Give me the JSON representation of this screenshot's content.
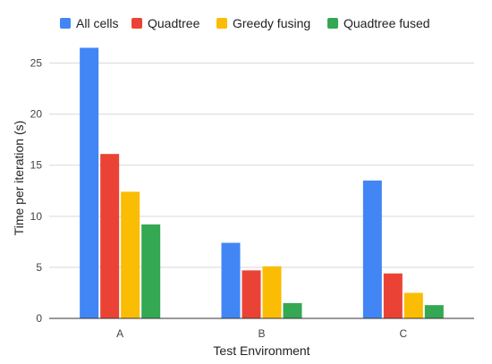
{
  "chart_data": {
    "type": "bar",
    "categories": [
      "A",
      "B",
      "C"
    ],
    "series": [
      {
        "name": "All cells",
        "color": "#4285F4",
        "values": [
          26.5,
          7.4,
          13.5
        ]
      },
      {
        "name": "Quadtree",
        "color": "#EA4335",
        "values": [
          16.1,
          4.7,
          4.4
        ]
      },
      {
        "name": "Greedy fusing",
        "color": "#FBBC04",
        "values": [
          12.4,
          5.1,
          2.5
        ]
      },
      {
        "name": "Quadtree fused",
        "color": "#34A853",
        "values": [
          9.2,
          1.5,
          1.3
        ]
      }
    ],
    "xlabel": "Test Environment",
    "ylabel": "Time per iteration (s)",
    "ylim": [
      0,
      27.5
    ],
    "yticks": [
      "0",
      "5",
      "10",
      "15",
      "20",
      "25"
    ],
    "grid": true,
    "legend_position": "top"
  }
}
